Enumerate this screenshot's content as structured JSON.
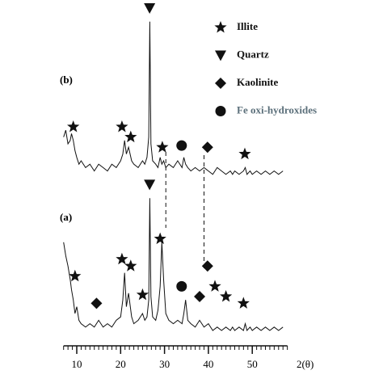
{
  "chart_data": {
    "type": "line",
    "x_label": "2(θ)",
    "xlim": [
      7,
      58
    ],
    "xticks": [
      10,
      20,
      30,
      40,
      50
    ],
    "ylim": [
      0,
      100
    ],
    "x": [
      7,
      7.5,
      8,
      8.5,
      8.8,
      9.2,
      9.6,
      10,
      10.5,
      11,
      12,
      13,
      14,
      15,
      16,
      17,
      18,
      19,
      20,
      20.5,
      20.9,
      21.3,
      21.8,
      22.5,
      23,
      24,
      25,
      25.5,
      26,
      26.4,
      26.65,
      26.9,
      27.3,
      28,
      28.5,
      29,
      29.4,
      29.8,
      30.3,
      31,
      32,
      33,
      34,
      34.4,
      34.8,
      35.3,
      36,
      37,
      38,
      39,
      40,
      41,
      42,
      43,
      44,
      45,
      45.5,
      46,
      47,
      48,
      48.4,
      48.8,
      49.5,
      50,
      51,
      52,
      53,
      54,
      55,
      56,
      57
    ],
    "series": [
      {
        "name": "(b)",
        "color": "#111111",
        "values": [
          62,
          64,
          60,
          61,
          63,
          61,
          58,
          56,
          54,
          55,
          53,
          54,
          52,
          54,
          53,
          52,
          54,
          53,
          55,
          57,
          61,
          57,
          59,
          55,
          54,
          53,
          55,
          54,
          56,
          62,
          96,
          60,
          55,
          54,
          53,
          56,
          54,
          55,
          53,
          54,
          53,
          55,
          53,
          56,
          54,
          53,
          52,
          53,
          52,
          53,
          52,
          51,
          53,
          52,
          51,
          52,
          51,
          52,
          51,
          52,
          53,
          51,
          52,
          51,
          52,
          51,
          52,
          51,
          52,
          51,
          52
        ]
      },
      {
        "name": "(a)",
        "color": "#111111",
        "values": [
          31,
          27,
          24,
          20,
          17,
          14,
          10,
          12,
          8,
          7,
          6,
          7,
          6,
          8,
          6,
          7,
          6,
          8,
          9,
          14,
          22,
          12,
          16,
          9,
          7,
          8,
          10,
          8,
          9,
          14,
          44,
          15,
          9,
          8,
          11,
          18,
          31,
          20,
          10,
          8,
          7,
          8,
          7,
          10,
          14,
          8,
          7,
          6,
          8,
          6,
          7,
          5,
          6,
          5,
          6,
          5,
          6,
          5,
          6,
          5,
          7,
          5,
          6,
          5,
          6,
          5,
          6,
          5,
          6,
          5,
          6
        ]
      }
    ],
    "legend": [
      {
        "symbol": "star",
        "label": "Illite",
        "color": "#111111"
      },
      {
        "symbol": "triangle",
        "label": "Quartz",
        "color": "#111111"
      },
      {
        "symbol": "diamond",
        "label": "Kaolinite",
        "color": "#111111"
      },
      {
        "symbol": "circle",
        "label": "Fe oxi-hydroxides",
        "color": "#5b6f7a"
      }
    ],
    "markers": [
      {
        "symbol": "triangle",
        "x": 26.6,
        "y": 100
      },
      {
        "symbol": "star",
        "x": 9.2,
        "y": 65
      },
      {
        "symbol": "star",
        "x": 20.3,
        "y": 65
      },
      {
        "symbol": "star",
        "x": 22.3,
        "y": 62
      },
      {
        "symbol": "star",
        "x": 29.5,
        "y": 59
      },
      {
        "symbol": "circle",
        "x": 33.9,
        "y": 59.5
      },
      {
        "symbol": "diamond",
        "x": 39.8,
        "y": 59
      },
      {
        "symbol": "star",
        "x": 48.3,
        "y": 57
      },
      {
        "symbol": "triangle",
        "x": 26.6,
        "y": 48
      },
      {
        "symbol": "star",
        "x": 9.6,
        "y": 21
      },
      {
        "symbol": "star",
        "x": 20.3,
        "y": 26
      },
      {
        "symbol": "star",
        "x": 22.3,
        "y": 24
      },
      {
        "symbol": "star",
        "x": 29.0,
        "y": 32
      },
      {
        "symbol": "diamond",
        "x": 14.5,
        "y": 13
      },
      {
        "symbol": "star",
        "x": 25.0,
        "y": 15.5
      },
      {
        "symbol": "circle",
        "x": 33.9,
        "y": 18
      },
      {
        "symbol": "diamond",
        "x": 38.0,
        "y": 15
      },
      {
        "symbol": "diamond",
        "x": 39.8,
        "y": 24
      },
      {
        "symbol": "star",
        "x": 41.5,
        "y": 18
      },
      {
        "symbol": "star",
        "x": 44.0,
        "y": 15
      },
      {
        "symbol": "star",
        "x": 48.0,
        "y": 13
      }
    ]
  }
}
